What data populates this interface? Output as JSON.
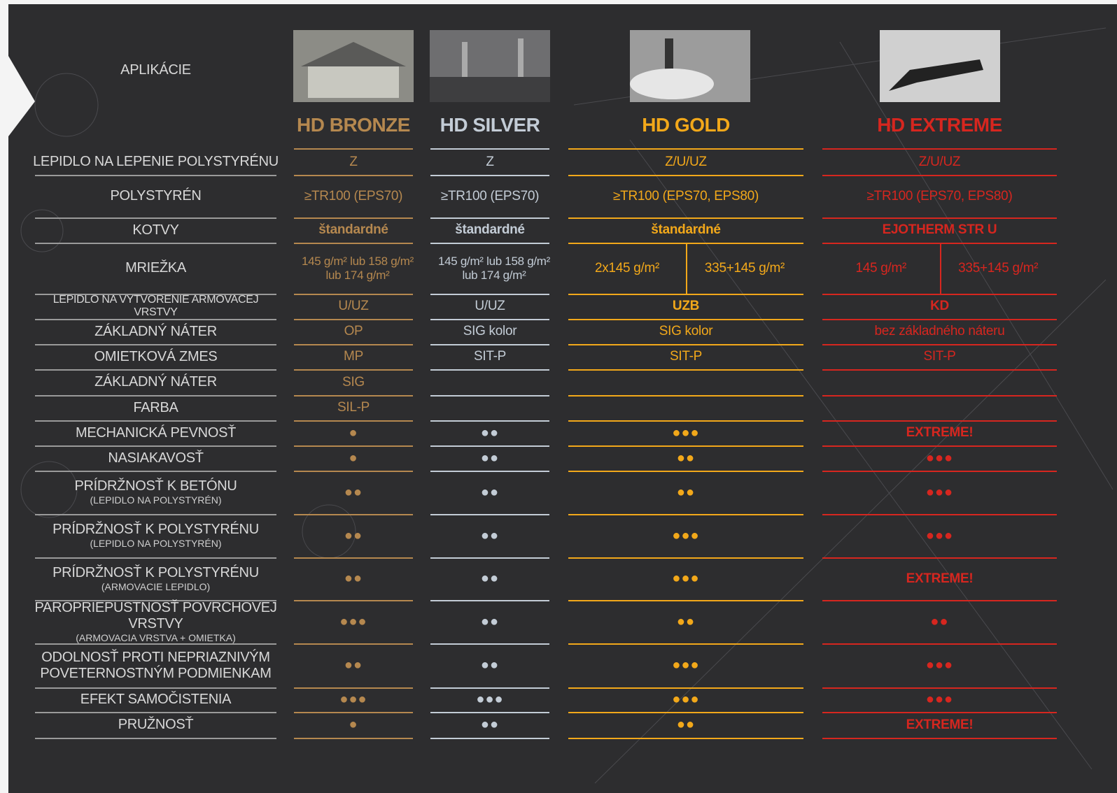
{
  "header": {
    "title": "APLIKÁCIE"
  },
  "products": [
    {
      "name": "HD BRONZE",
      "color": "#b5884f"
    },
    {
      "name": "HD SILVER",
      "color": "#c3ccd6"
    },
    {
      "name": "HD GOLD",
      "color": "#f2a81a"
    },
    {
      "name": "HD EXTREME",
      "color": "#d6261f"
    }
  ],
  "rows": [
    {
      "label": [
        "LEPIDLO NA LEPENIE POLYSTYRÉNU"
      ],
      "cells": [
        "Z",
        "Z",
        "Z/U/UZ",
        "Z/U/UZ"
      ]
    },
    {
      "label": [
        "POLYSTYRÉN"
      ],
      "cells": [
        "≥TR100 (EPS70)",
        "≥TR100 (EPS70)",
        "≥TR100 (EPS70, EPS80)",
        "≥TR100 (EPS70, EPS80)"
      ]
    },
    {
      "label": [
        "KOTVY"
      ],
      "cells": [
        "štandardné",
        "štandardné",
        "štandardné",
        "EJOTHERM STR U"
      ]
    },
    {
      "label": [
        "MRIEŽKA"
      ],
      "cells": [
        "145 g/m² lub 158 g/m² lub 174 g/m²",
        "145 g/m² lub 158 g/m² lub 174 g/m²",
        [
          "2x145 g/m²",
          "335+145 g/m²"
        ],
        [
          "145 g/m²",
          "335+145 g/m²"
        ]
      ]
    },
    {
      "label": [
        "LEPIDLO NA VYTVORENIE ARMOVACEJ VRSTVY"
      ],
      "cells": [
        "U/UZ",
        "U/UZ",
        "UZB",
        "KD"
      ]
    },
    {
      "label": [
        "ZÁKLADNÝ NÁTER"
      ],
      "cells": [
        "OP",
        "SIG kolor",
        "SIG kolor",
        "bez základného náteru"
      ]
    },
    {
      "label": [
        "OMIETKOVÁ ZMES"
      ],
      "cells": [
        "MP",
        "SIT-P",
        "SIT-P",
        "SIT-P"
      ]
    },
    {
      "label": [
        "ZÁKLADNÝ NÁTER"
      ],
      "cells": [
        "SIG",
        null,
        null,
        null
      ]
    },
    {
      "label": [
        "FARBA"
      ],
      "cells": [
        "SIL-P",
        null,
        null,
        null
      ]
    },
    {
      "label": [
        "MECHANICKÁ PEVNOSŤ"
      ],
      "cells": [
        "●",
        "●●",
        "●●●",
        "EXTREME!"
      ]
    },
    {
      "label": [
        "NASIAKAVOSŤ"
      ],
      "cells": [
        "●",
        "●●",
        "●●",
        "●●●"
      ]
    },
    {
      "label": [
        "PRÍDRŽNOSŤ K BETÓNU"
      ],
      "sublabel": "(LEPIDLO NA POLYSTYRÉN)",
      "cells": [
        "●●",
        "●●",
        "●●",
        "●●●"
      ]
    },
    {
      "label": [
        "PRÍDRŽNOSŤ K POLYSTYRÉNU"
      ],
      "sublabel": "(LEPIDLO NA POLYSTYRÉN)",
      "cells": [
        "●●",
        "●●",
        "●●●",
        "●●●"
      ]
    },
    {
      "label": [
        "PRÍDRŽNOSŤ K POLYSTYRÉNU"
      ],
      "sublabel": "(ARMOVACIE LEPIDLO)",
      "cells": [
        "●●",
        "●●",
        "●●●",
        "EXTREME!"
      ]
    },
    {
      "label": [
        "PAROPRIEPUSTNOSŤ POVRCHOVEJ VRSTVY"
      ],
      "sublabel": "(ARMOVACIA VRSTVA + OMIETKA)",
      "cells": [
        "●●●",
        "●●",
        "●●",
        "●●"
      ]
    },
    {
      "label": [
        "ODOLNOSŤ PROTI NEPRIAZNIVÝM",
        "POVETERNOSTNÝM PODMIENKAM"
      ],
      "cells": [
        "●●",
        "●●",
        "●●●",
        "●●●"
      ]
    },
    {
      "label": [
        "EFEKT SAMOČISTENIA"
      ],
      "cells": [
        "●●●",
        "●●●",
        "●●●",
        "●●●"
      ]
    },
    {
      "label": [
        "PRUŽNOSŤ"
      ],
      "cells": [
        "●",
        "●●",
        "●●",
        "EXTREME!"
      ]
    }
  ]
}
